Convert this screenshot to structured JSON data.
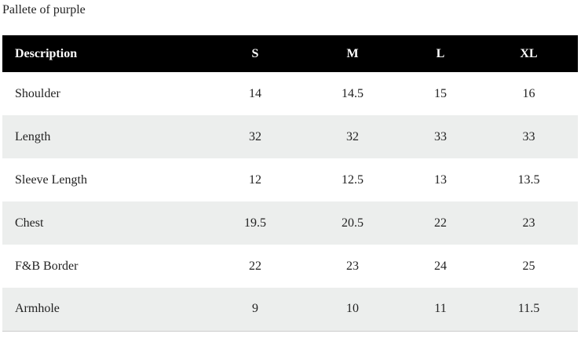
{
  "title": "Pallete of purple",
  "table": {
    "header": [
      "Description",
      "S",
      "M",
      "L",
      "XL"
    ],
    "rows": [
      [
        "Shoulder",
        "14",
        "14.5",
        "15",
        "16"
      ],
      [
        "Length",
        "32",
        "32",
        "33",
        "33"
      ],
      [
        "Sleeve Length",
        "12",
        "12.5",
        "13",
        "13.5"
      ],
      [
        "Chest",
        "19.5",
        "20.5",
        "22",
        "23"
      ],
      [
        "F&B Border",
        "22",
        "23",
        "24",
        "25"
      ],
      [
        "Armhole",
        "9",
        "10",
        "11",
        "11.5"
      ]
    ]
  }
}
